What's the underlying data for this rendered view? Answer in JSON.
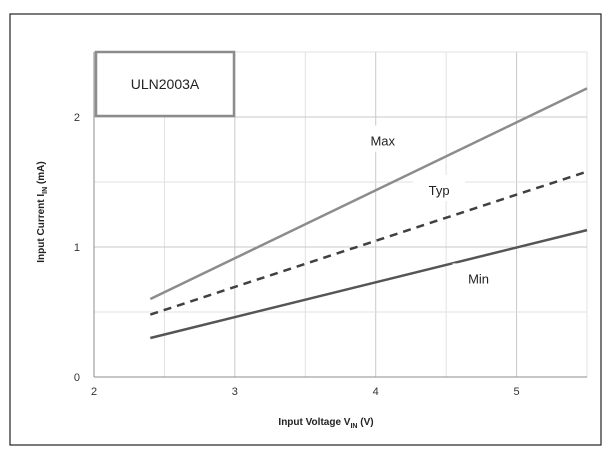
{
  "chart_data": {
    "type": "line",
    "legend_box_text": "ULN2003A",
    "xlabel_main": "Input Voltage V",
    "xlabel_sub": "IN",
    "xlabel_unit": " (V)",
    "ylabel_main": "Input Current I",
    "ylabel_sub": "IN",
    "ylabel_unit": " (mA)",
    "xlim": [
      2,
      5.5
    ],
    "ylim": [
      0,
      2.5
    ],
    "x_ticks": [
      "2",
      "3",
      "4",
      "5"
    ],
    "y_ticks": [
      "0",
      "1",
      "2"
    ],
    "grid": true,
    "series": [
      {
        "name": "Max",
        "style": "solid",
        "color": "#8c8c8c",
        "x": [
          2.4,
          5.5
        ],
        "y": [
          0.6,
          2.22
        ]
      },
      {
        "name": "Typ",
        "style": "dashed",
        "color": "#404040",
        "x": [
          2.4,
          5.5
        ],
        "y": [
          0.48,
          1.58
        ]
      },
      {
        "name": "Min",
        "style": "solid",
        "color": "#555555",
        "x": [
          2.4,
          5.5
        ],
        "y": [
          0.3,
          1.13
        ]
      }
    ]
  }
}
